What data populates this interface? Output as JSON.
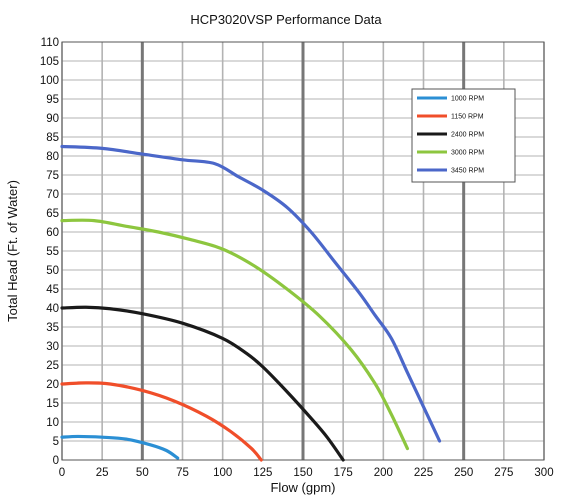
{
  "chart_data": {
    "type": "line",
    "title": "HCP3020VSP Performance Data",
    "xlabel": "Flow (gpm)",
    "ylabel": "Total Head (Ft. of Water)",
    "xlim": [
      0,
      300
    ],
    "ylim": [
      0,
      110
    ],
    "x_ticks": [
      "0",
      "25",
      "50",
      "75",
      "100",
      "125",
      "150",
      "175",
      "200",
      "225",
      "250",
      "275",
      "300"
    ],
    "y_ticks": [
      "0",
      "5",
      "10",
      "15",
      "20",
      "25",
      "30",
      "35",
      "40",
      "45",
      "50",
      "55",
      "60",
      "65",
      "70",
      "75",
      "80",
      "85",
      "90",
      "95",
      "100",
      "105",
      "110"
    ],
    "grid": true,
    "legend_position": "top-right",
    "series": [
      {
        "name": "1000 RPM",
        "color": "#2b8fd4",
        "points": [
          [
            0,
            6
          ],
          [
            10,
            6.2
          ],
          [
            25,
            6
          ],
          [
            40,
            5.5
          ],
          [
            55,
            4
          ],
          [
            65,
            2.5
          ],
          [
            72,
            0.5
          ]
        ]
      },
      {
        "name": "1150 RPM",
        "color": "#f04e2a",
        "points": [
          [
            0,
            20
          ],
          [
            15,
            20.3
          ],
          [
            30,
            20
          ],
          [
            50,
            18.3
          ],
          [
            70,
            15.5
          ],
          [
            90,
            11.5
          ],
          [
            105,
            7.5
          ],
          [
            118,
            3
          ],
          [
            124,
            0
          ]
        ]
      },
      {
        "name": "2400 RPM",
        "color": "#1a1a1a",
        "points": [
          [
            0,
            40
          ],
          [
            15,
            40.2
          ],
          [
            30,
            39.8
          ],
          [
            50,
            38.5
          ],
          [
            75,
            36
          ],
          [
            100,
            32
          ],
          [
            115,
            28
          ],
          [
            125,
            24.5
          ],
          [
            140,
            18
          ],
          [
            155,
            11
          ],
          [
            165,
            6
          ],
          [
            175,
            0
          ]
        ]
      },
      {
        "name": "3000 RPM",
        "color": "#8dc63f",
        "points": [
          [
            0,
            63
          ],
          [
            20,
            63
          ],
          [
            40,
            61.5
          ],
          [
            60,
            60
          ],
          [
            80,
            58
          ],
          [
            100,
            55.5
          ],
          [
            120,
            51
          ],
          [
            140,
            45
          ],
          [
            160,
            38
          ],
          [
            180,
            29
          ],
          [
            195,
            20
          ],
          [
            205,
            12
          ],
          [
            215,
            3
          ]
        ]
      },
      {
        "name": "3450 RPM",
        "color": "#4b67c9",
        "points": [
          [
            0,
            82.5
          ],
          [
            25,
            82
          ],
          [
            50,
            80.5
          ],
          [
            75,
            79
          ],
          [
            95,
            78
          ],
          [
            110,
            74.5
          ],
          [
            125,
            71
          ],
          [
            140,
            66.5
          ],
          [
            155,
            60
          ],
          [
            170,
            52
          ],
          [
            185,
            44
          ],
          [
            195,
            38
          ],
          [
            205,
            32
          ],
          [
            215,
            23
          ],
          [
            225,
            14
          ],
          [
            235,
            5
          ]
        ]
      }
    ]
  }
}
